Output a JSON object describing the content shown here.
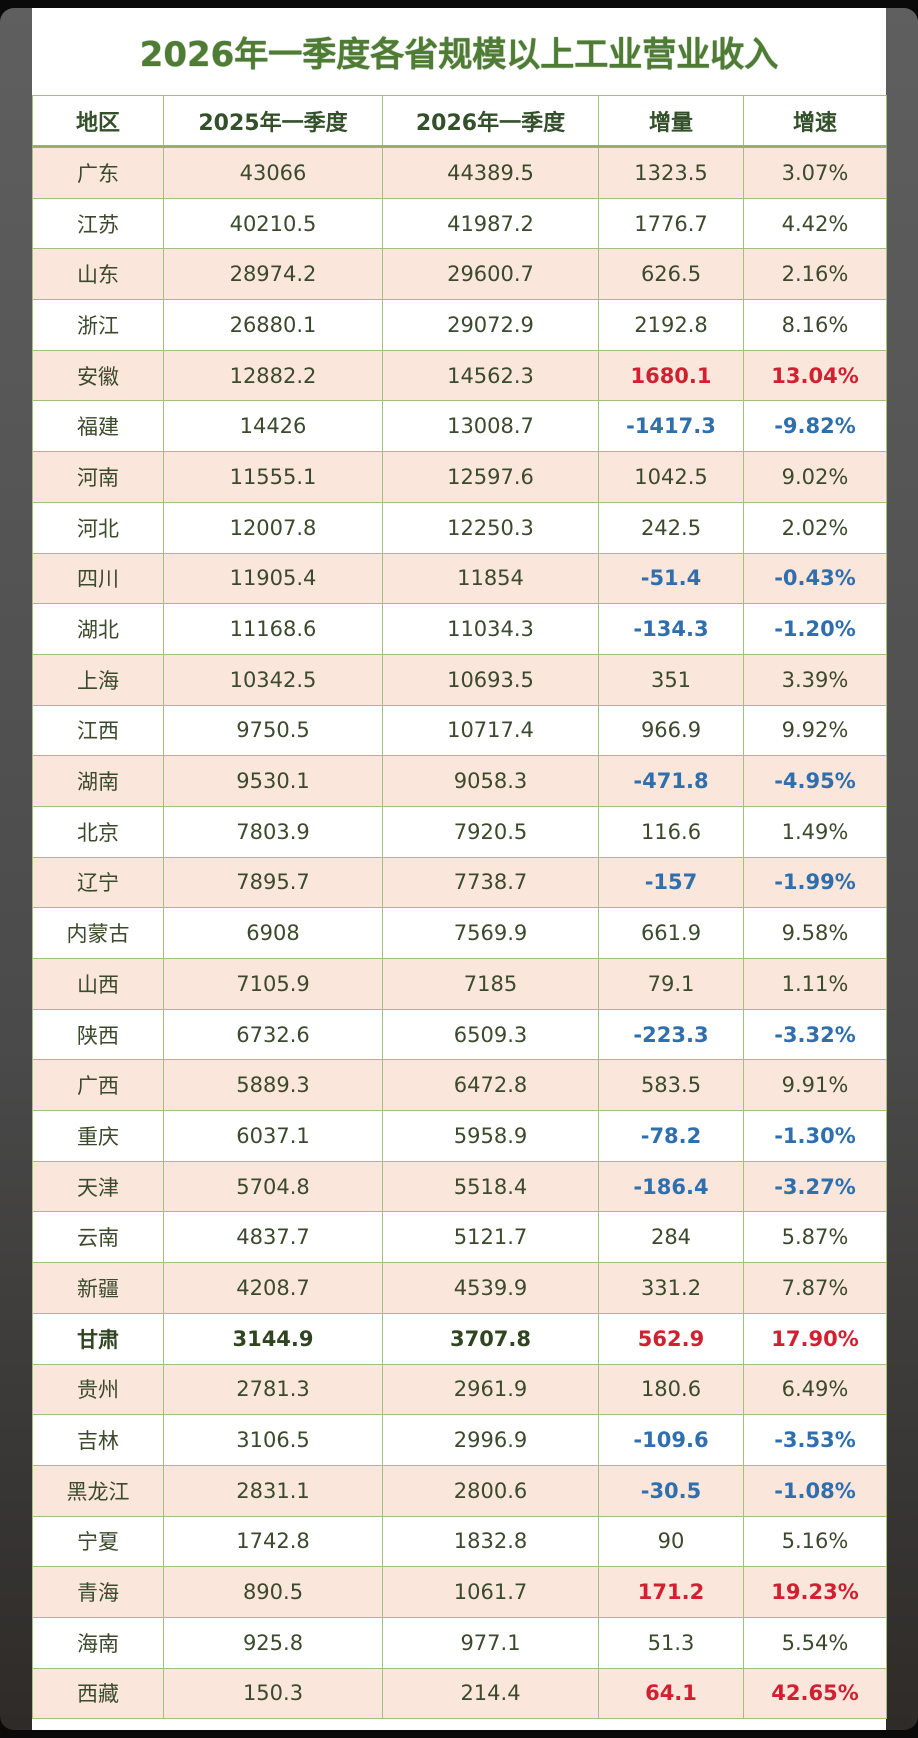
{
  "title": "2026年一季度各省规模以上工业营业收入",
  "colors": {
    "title": "#4f7c34",
    "increase_highlight": "#d1202f",
    "decrease": "#2f6fae",
    "row_alt": "#fbe6dc",
    "border": "#a2bf7c"
  },
  "table": {
    "headers": [
      "地区",
      "2025年一季度",
      "2026年一季度",
      "增量",
      "增速"
    ],
    "rows": [
      {
        "region": "广东",
        "q1_2025": "43066",
        "q1_2026": "44389.5",
        "delta": "1323.5",
        "rate": "3.07%",
        "style": "normal"
      },
      {
        "region": "江苏",
        "q1_2025": "40210.5",
        "q1_2026": "41987.2",
        "delta": "1776.7",
        "rate": "4.42%",
        "style": "normal"
      },
      {
        "region": "山东",
        "q1_2025": "28974.2",
        "q1_2026": "29600.7",
        "delta": "626.5",
        "rate": "2.16%",
        "style": "normal"
      },
      {
        "region": "浙江",
        "q1_2025": "26880.1",
        "q1_2026": "29072.9",
        "delta": "2192.8",
        "rate": "8.16%",
        "style": "normal"
      },
      {
        "region": "安徽",
        "q1_2025": "12882.2",
        "q1_2026": "14562.3",
        "delta": "1680.1",
        "rate": "13.04%",
        "style": "up"
      },
      {
        "region": "福建",
        "q1_2025": "14426",
        "q1_2026": "13008.7",
        "delta": "-1417.3",
        "rate": "-9.82%",
        "style": "down"
      },
      {
        "region": "河南",
        "q1_2025": "11555.1",
        "q1_2026": "12597.6",
        "delta": "1042.5",
        "rate": "9.02%",
        "style": "normal"
      },
      {
        "region": "河北",
        "q1_2025": "12007.8",
        "q1_2026": "12250.3",
        "delta": "242.5",
        "rate": "2.02%",
        "style": "normal"
      },
      {
        "region": "四川",
        "q1_2025": "11905.4",
        "q1_2026": "11854",
        "delta": "-51.4",
        "rate": "-0.43%",
        "style": "down"
      },
      {
        "region": "湖北",
        "q1_2025": "11168.6",
        "q1_2026": "11034.3",
        "delta": "-134.3",
        "rate": "-1.20%",
        "style": "down"
      },
      {
        "region": "上海",
        "q1_2025": "10342.5",
        "q1_2026": "10693.5",
        "delta": "351",
        "rate": "3.39%",
        "style": "normal"
      },
      {
        "region": "江西",
        "q1_2025": "9750.5",
        "q1_2026": "10717.4",
        "delta": "966.9",
        "rate": "9.92%",
        "style": "normal"
      },
      {
        "region": "湖南",
        "q1_2025": "9530.1",
        "q1_2026": "9058.3",
        "delta": "-471.8",
        "rate": "-4.95%",
        "style": "down"
      },
      {
        "region": "北京",
        "q1_2025": "7803.9",
        "q1_2026": "7920.5",
        "delta": "116.6",
        "rate": "1.49%",
        "style": "normal"
      },
      {
        "region": "辽宁",
        "q1_2025": "7895.7",
        "q1_2026": "7738.7",
        "delta": "-157",
        "rate": "-1.99%",
        "style": "down"
      },
      {
        "region": "内蒙古",
        "q1_2025": "6908",
        "q1_2026": "7569.9",
        "delta": "661.9",
        "rate": "9.58%",
        "style": "normal"
      },
      {
        "region": "山西",
        "q1_2025": "7105.9",
        "q1_2026": "7185",
        "delta": "79.1",
        "rate": "1.11%",
        "style": "normal"
      },
      {
        "region": "陕西",
        "q1_2025": "6732.6",
        "q1_2026": "6509.3",
        "delta": "-223.3",
        "rate": "-3.32%",
        "style": "down"
      },
      {
        "region": "广西",
        "q1_2025": "5889.3",
        "q1_2026": "6472.8",
        "delta": "583.5",
        "rate": "9.91%",
        "style": "normal"
      },
      {
        "region": "重庆",
        "q1_2025": "6037.1",
        "q1_2026": "5958.9",
        "delta": "-78.2",
        "rate": "-1.30%",
        "style": "down"
      },
      {
        "region": "天津",
        "q1_2025": "5704.8",
        "q1_2026": "5518.4",
        "delta": "-186.4",
        "rate": "-3.27%",
        "style": "down"
      },
      {
        "region": "云南",
        "q1_2025": "4837.7",
        "q1_2026": "5121.7",
        "delta": "284",
        "rate": "5.87%",
        "style": "normal"
      },
      {
        "region": "新疆",
        "q1_2025": "4208.7",
        "q1_2026": "4539.9",
        "delta": "331.2",
        "rate": "7.87%",
        "style": "normal"
      },
      {
        "region": "甘肃",
        "q1_2025": "3144.9",
        "q1_2026": "3707.8",
        "delta": "562.9",
        "rate": "17.90%",
        "style": "up-bold"
      },
      {
        "region": "贵州",
        "q1_2025": "2781.3",
        "q1_2026": "2961.9",
        "delta": "180.6",
        "rate": "6.49%",
        "style": "normal"
      },
      {
        "region": "吉林",
        "q1_2025": "3106.5",
        "q1_2026": "2996.9",
        "delta": "-109.6",
        "rate": "-3.53%",
        "style": "down"
      },
      {
        "region": "黑龙江",
        "q1_2025": "2831.1",
        "q1_2026": "2800.6",
        "delta": "-30.5",
        "rate": "-1.08%",
        "style": "down"
      },
      {
        "region": "宁夏",
        "q1_2025": "1742.8",
        "q1_2026": "1832.8",
        "delta": "90",
        "rate": "5.16%",
        "style": "normal"
      },
      {
        "region": "青海",
        "q1_2025": "890.5",
        "q1_2026": "1061.7",
        "delta": "171.2",
        "rate": "19.23%",
        "style": "up"
      },
      {
        "region": "海南",
        "q1_2025": "925.8",
        "q1_2026": "977.1",
        "delta": "51.3",
        "rate": "5.54%",
        "style": "normal"
      },
      {
        "region": "西藏",
        "q1_2025": "150.3",
        "q1_2026": "214.4",
        "delta": "64.1",
        "rate": "42.65%",
        "style": "up"
      }
    ]
  },
  "chart_data": {
    "type": "table",
    "title": "2026年一季度各省规模以上工业营业收入",
    "columns": [
      "地区",
      "2025年一季度",
      "2026年一季度",
      "增量",
      "增速"
    ],
    "categories": [
      "广东",
      "江苏",
      "山东",
      "浙江",
      "安徽",
      "福建",
      "河南",
      "河北",
      "四川",
      "湖北",
      "上海",
      "江西",
      "湖南",
      "北京",
      "辽宁",
      "内蒙古",
      "山西",
      "陕西",
      "广西",
      "重庆",
      "天津",
      "云南",
      "新疆",
      "甘肃",
      "贵州",
      "吉林",
      "黑龙江",
      "宁夏",
      "青海",
      "海南",
      "西藏"
    ],
    "series": [
      {
        "name": "2025年一季度",
        "values": [
          43066,
          40210.5,
          28974.2,
          26880.1,
          12882.2,
          14426,
          11555.1,
          12007.8,
          11905.4,
          11168.6,
          10342.5,
          9750.5,
          9530.1,
          7803.9,
          7895.7,
          6908,
          7105.9,
          6732.6,
          5889.3,
          6037.1,
          5704.8,
          4837.7,
          4208.7,
          3144.9,
          2781.3,
          3106.5,
          2831.1,
          1742.8,
          890.5,
          925.8,
          150.3
        ]
      },
      {
        "name": "2026年一季度",
        "values": [
          44389.5,
          41987.2,
          29600.7,
          29072.9,
          14562.3,
          13008.7,
          12597.6,
          12250.3,
          11854,
          11034.3,
          10693.5,
          10717.4,
          9058.3,
          7920.5,
          7738.7,
          7569.9,
          7185,
          6509.3,
          6472.8,
          5958.9,
          5518.4,
          5121.7,
          4539.9,
          3707.8,
          2961.9,
          2996.9,
          2800.6,
          1832.8,
          1061.7,
          977.1,
          214.4
        ]
      },
      {
        "name": "增量",
        "values": [
          1323.5,
          1776.7,
          626.5,
          2192.8,
          1680.1,
          -1417.3,
          1042.5,
          242.5,
          -51.4,
          -134.3,
          351,
          966.9,
          -471.8,
          116.6,
          -157,
          661.9,
          79.1,
          -223.3,
          583.5,
          -78.2,
          -186.4,
          284,
          331.2,
          562.9,
          180.6,
          -109.6,
          -30.5,
          90,
          171.2,
          51.3,
          64.1
        ]
      },
      {
        "name": "增速(%)",
        "values": [
          3.07,
          4.42,
          2.16,
          8.16,
          13.04,
          -9.82,
          9.02,
          2.02,
          -0.43,
          -1.2,
          3.39,
          9.92,
          -4.95,
          1.49,
          -1.99,
          9.58,
          1.11,
          -3.32,
          9.91,
          -1.3,
          -3.27,
          5.87,
          7.87,
          17.9,
          6.49,
          -3.53,
          -1.08,
          5.16,
          19.23,
          5.54,
          42.65
        ]
      }
    ]
  }
}
